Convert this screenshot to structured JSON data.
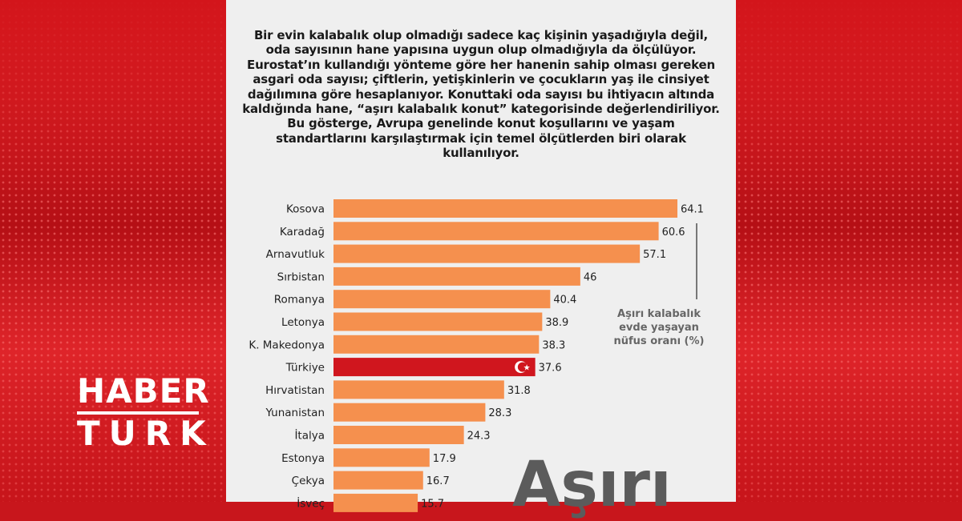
{
  "brand": {
    "line1": "HABER",
    "line2": "TURK"
  },
  "intro_text": "Bir evin kalabalık olup olmadığı sadece kaç kişinin yaşadığıyla değil, oda sayısının hane yapısına uygun olup olmadığıyla da ölçülüyor. Eurostat’ın kullandığı yönteme göre her hanenin sahip olması gereken asgari oda sayısı; çiftlerin, yetişkinlerin ve çocukların yaş ile cinsiyet dağılımına göre hesaplanıyor. Konuttaki oda sayısı bu ihtiyacın altında kaldığında hane, “aşırı kalabalık konut” kategorisinde değerlendiriliyor. Bu gösterge, Avrupa genelinde konut koşullarını ve yaşam standartlarını karşılaştırmak için temel ölçütlerden biri olarak kullanılıyor.",
  "note": "Aşırı kalabalık evde yaşayan nüfus oranı (%)",
  "big_word": "Aşırı",
  "colors": {
    "bar": "#f5904e",
    "highlight": "#d0161e",
    "panel": "#efefef",
    "brand_red": "#c8161c"
  },
  "highlight_icon": "turkish-flag-crescent-star-icon",
  "chart_data": {
    "type": "bar",
    "orientation": "horizontal",
    "title": "",
    "xlabel": "",
    "ylabel": "Aşırı kalabalık evde yaşayan nüfus oranı (%)",
    "categories": [
      "Kosova",
      "Karadağ",
      "Arnavutluk",
      "Sırbistan",
      "Romanya",
      "Letonya",
      "K. Makedonya",
      "Türkiye",
      "Hırvatistan",
      "Yunanistan",
      "İtalya",
      "Estonya",
      "Çekya",
      "İsveç"
    ],
    "values": [
      64.1,
      60.6,
      57.1,
      46,
      40.4,
      38.9,
      38.3,
      37.6,
      31.8,
      28.3,
      24.3,
      17.9,
      16.7,
      15.7
    ],
    "value_labels": [
      "64.1",
      "60.6",
      "57.1",
      "46",
      "40.4",
      "38.9",
      "38.3",
      "37.6",
      "31.8",
      "28.3",
      "24.3",
      "17.9",
      "16.7",
      "15.7"
    ],
    "highlight_category": "Türkiye",
    "xlim": [
      0,
      64.1
    ],
    "grid": false,
    "legend": "none"
  }
}
